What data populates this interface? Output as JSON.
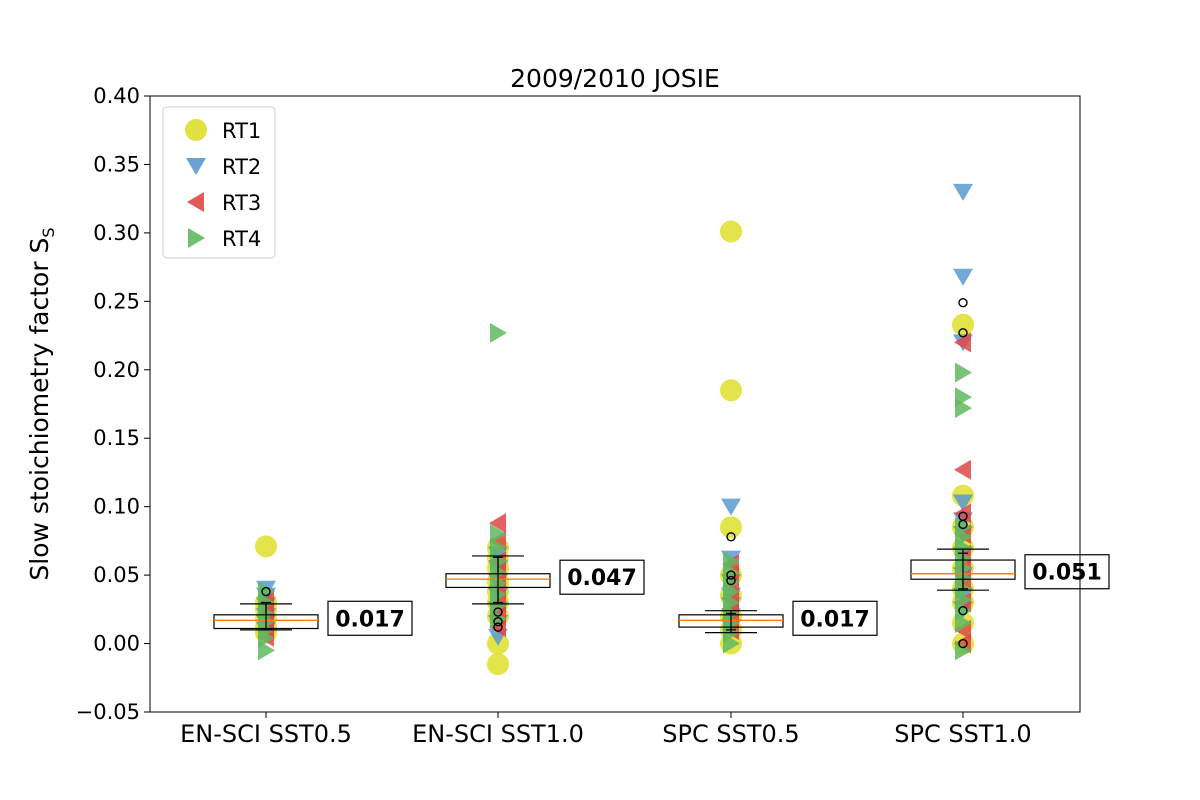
{
  "chart_data": {
    "type": "scatter",
    "title": "2009/2010 JOSIE",
    "ylabel": "Slow stoichiometry factor S",
    "ylabel_sub": "S",
    "xlabel": "",
    "ylim": [
      -0.05,
      0.4
    ],
    "yticks": [
      -0.05,
      0.0,
      0.05,
      0.1,
      0.15,
      0.2,
      0.25,
      0.3,
      0.35,
      0.4
    ],
    "ytick_labels": [
      "−0.05",
      "0.00",
      "0.05",
      "0.10",
      "0.15",
      "0.20",
      "0.25",
      "0.30",
      "0.35",
      "0.40"
    ],
    "categories": [
      "EN-SCI SST0.5",
      "EN-SCI SST1.0",
      "SPC SST0.5",
      "SPC SST1.0"
    ],
    "grid": false,
    "legend_position": "top-left",
    "series": [
      {
        "name": "RT1",
        "marker": "circle",
        "color": "#dede2a",
        "points": [
          [
            0,
            0.071
          ],
          [
            0,
            0.03
          ],
          [
            0,
            0.025
          ],
          [
            0,
            0.018
          ],
          [
            0,
            0.012
          ],
          [
            0,
            0.008
          ],
          [
            1,
            0.07
          ],
          [
            1,
            0.062
          ],
          [
            1,
            0.055
          ],
          [
            1,
            0.045
          ],
          [
            1,
            0.038
          ],
          [
            1,
            0.03
          ],
          [
            1,
            0.02
          ],
          [
            1,
            0.0
          ],
          [
            1,
            -0.015
          ],
          [
            2,
            0.301
          ],
          [
            2,
            0.185
          ],
          [
            2,
            0.085
          ],
          [
            2,
            0.05
          ],
          [
            2,
            0.035
          ],
          [
            2,
            0.02
          ],
          [
            2,
            0.01
          ],
          [
            2,
            0.0
          ],
          [
            3,
            0.233
          ],
          [
            3,
            0.108
          ],
          [
            3,
            0.085
          ],
          [
            3,
            0.07
          ],
          [
            3,
            0.055
          ],
          [
            3,
            0.04
          ],
          [
            3,
            0.03
          ],
          [
            3,
            0.015
          ],
          [
            3,
            0.0
          ]
        ]
      },
      {
        "name": "RT2",
        "marker": "triangle-down",
        "color": "#5a9acf",
        "points": [
          [
            0,
            0.04
          ],
          [
            0,
            0.035
          ],
          [
            0,
            0.028
          ],
          [
            0,
            0.02
          ],
          [
            0,
            0.015
          ],
          [
            0,
            0.01
          ],
          [
            1,
            0.065
          ],
          [
            1,
            0.055
          ],
          [
            1,
            0.045
          ],
          [
            1,
            0.035
          ],
          [
            1,
            0.025
          ],
          [
            1,
            0.015
          ],
          [
            1,
            0.005
          ],
          [
            2,
            0.1
          ],
          [
            2,
            0.062
          ],
          [
            2,
            0.045
          ],
          [
            2,
            0.035
          ],
          [
            2,
            0.028
          ],
          [
            2,
            0.02
          ],
          [
            2,
            0.012
          ],
          [
            3,
            0.33
          ],
          [
            3,
            0.268
          ],
          [
            3,
            0.22
          ],
          [
            3,
            0.103
          ],
          [
            3,
            0.09
          ],
          [
            3,
            0.08
          ],
          [
            3,
            0.065
          ],
          [
            3,
            0.05
          ],
          [
            3,
            0.035
          ],
          [
            3,
            0.025
          ]
        ]
      },
      {
        "name": "RT3",
        "marker": "triangle-left",
        "color": "#e04646",
        "points": [
          [
            0,
            0.032
          ],
          [
            0,
            0.025
          ],
          [
            0,
            0.02
          ],
          [
            0,
            0.015
          ],
          [
            0,
            0.01
          ],
          [
            0,
            0.005
          ],
          [
            1,
            0.088
          ],
          [
            1,
            0.075
          ],
          [
            1,
            0.06
          ],
          [
            1,
            0.05
          ],
          [
            1,
            0.04
          ],
          [
            1,
            0.03
          ],
          [
            1,
            0.02
          ],
          [
            1,
            0.012
          ],
          [
            2,
            0.058
          ],
          [
            2,
            0.05
          ],
          [
            2,
            0.042
          ],
          [
            2,
            0.033
          ],
          [
            2,
            0.025
          ],
          [
            2,
            0.018
          ],
          [
            2,
            0.01
          ],
          [
            3,
            0.22
          ],
          [
            3,
            0.127
          ],
          [
            3,
            0.095
          ],
          [
            3,
            0.08
          ],
          [
            3,
            0.065
          ],
          [
            3,
            0.055
          ],
          [
            3,
            0.045
          ],
          [
            3,
            0.03
          ],
          [
            3,
            0.01
          ],
          [
            3,
            0.0
          ]
        ]
      },
      {
        "name": "RT4",
        "marker": "triangle-right",
        "color": "#5fba5f",
        "points": [
          [
            0,
            0.038
          ],
          [
            0,
            0.03
          ],
          [
            0,
            0.022
          ],
          [
            0,
            0.016
          ],
          [
            0,
            0.01
          ],
          [
            0,
            0.004
          ],
          [
            0,
            -0.005
          ],
          [
            1,
            0.227
          ],
          [
            1,
            0.08
          ],
          [
            1,
            0.07
          ],
          [
            1,
            0.06
          ],
          [
            1,
            0.052
          ],
          [
            1,
            0.044
          ],
          [
            1,
            0.036
          ],
          [
            1,
            0.028
          ],
          [
            1,
            0.018
          ],
          [
            2,
            0.06
          ],
          [
            2,
            0.052
          ],
          [
            2,
            0.045
          ],
          [
            2,
            0.038
          ],
          [
            2,
            0.03
          ],
          [
            2,
            0.022
          ],
          [
            2,
            0.015
          ],
          [
            2,
            0.008
          ],
          [
            2,
            0.0
          ],
          [
            3,
            0.198
          ],
          [
            3,
            0.18
          ],
          [
            3,
            0.172
          ],
          [
            3,
            0.085
          ],
          [
            3,
            0.078
          ],
          [
            3,
            0.07
          ],
          [
            3,
            0.062
          ],
          [
            3,
            0.055
          ],
          [
            3,
            0.048
          ],
          [
            3,
            0.04
          ],
          [
            3,
            0.032
          ],
          [
            3,
            0.024
          ],
          [
            3,
            0.015
          ],
          [
            3,
            -0.005
          ]
        ]
      }
    ],
    "boxplots": [
      {
        "q1": 0.011,
        "median": 0.017,
        "q3": 0.021,
        "whisker_low": 0.01,
        "whisker_high": 0.029,
        "fliers": [
          0.038
        ],
        "median_label": "0.017"
      },
      {
        "q1": 0.041,
        "median": 0.047,
        "q3": 0.051,
        "whisker_low": 0.029,
        "whisker_high": 0.064,
        "fliers": [
          0.023,
          0.016,
          0.012
        ],
        "median_label": "0.047"
      },
      {
        "q1": 0.012,
        "median": 0.017,
        "q3": 0.021,
        "whisker_low": 0.008,
        "whisker_high": 0.024,
        "fliers": [
          0.078,
          0.05,
          0.046
        ],
        "median_label": "0.017"
      },
      {
        "q1": 0.047,
        "median": 0.051,
        "q3": 0.061,
        "whisker_low": 0.039,
        "whisker_high": 0.069,
        "fliers": [
          0.249,
          0.227,
          0.093,
          0.087,
          0.024,
          0.0
        ],
        "median_label": "0.051"
      }
    ],
    "error_bars": [
      {
        "center": 0.02,
        "low": 0.01,
        "high": 0.03
      },
      {
        "center": 0.047,
        "low": 0.03,
        "high": 0.063
      },
      {
        "center": 0.016,
        "low": 0.01,
        "high": 0.022
      },
      {
        "center": 0.052,
        "low": 0.04,
        "high": 0.066
      }
    ],
    "colors": {
      "median_line": "#ff7f0e",
      "box": "#000000"
    }
  }
}
